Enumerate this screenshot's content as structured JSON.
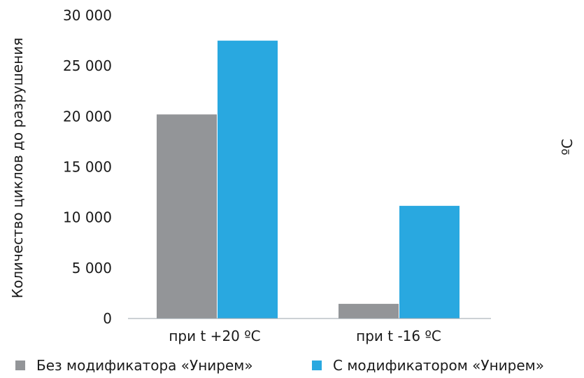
{
  "chart_data": {
    "type": "bar",
    "title": "",
    "xlabel": "",
    "ylabel": "Количество циклов до разрушения",
    "ylim": [
      0,
      30000
    ],
    "yticks": [
      "0",
      "5 000",
      "10 000",
      "15 000",
      "20 000",
      "25 000",
      "30 000"
    ],
    "ytick_values": [
      0,
      5000,
      10000,
      15000,
      20000,
      25000,
      30000
    ],
    "categories": [
      "при t +20 ºC",
      "при t -16 ºC"
    ],
    "series": [
      {
        "name": "Без модификатора «Унирем»",
        "color": "#939598",
        "values": [
          20200,
          1450
        ]
      },
      {
        "name": "С модификатором «Унирем»",
        "color": "#29a8e0",
        "values": [
          27500,
          11150
        ]
      }
    ],
    "grid": false,
    "legend": "bottom",
    "annotations": [
      "ºC"
    ]
  }
}
